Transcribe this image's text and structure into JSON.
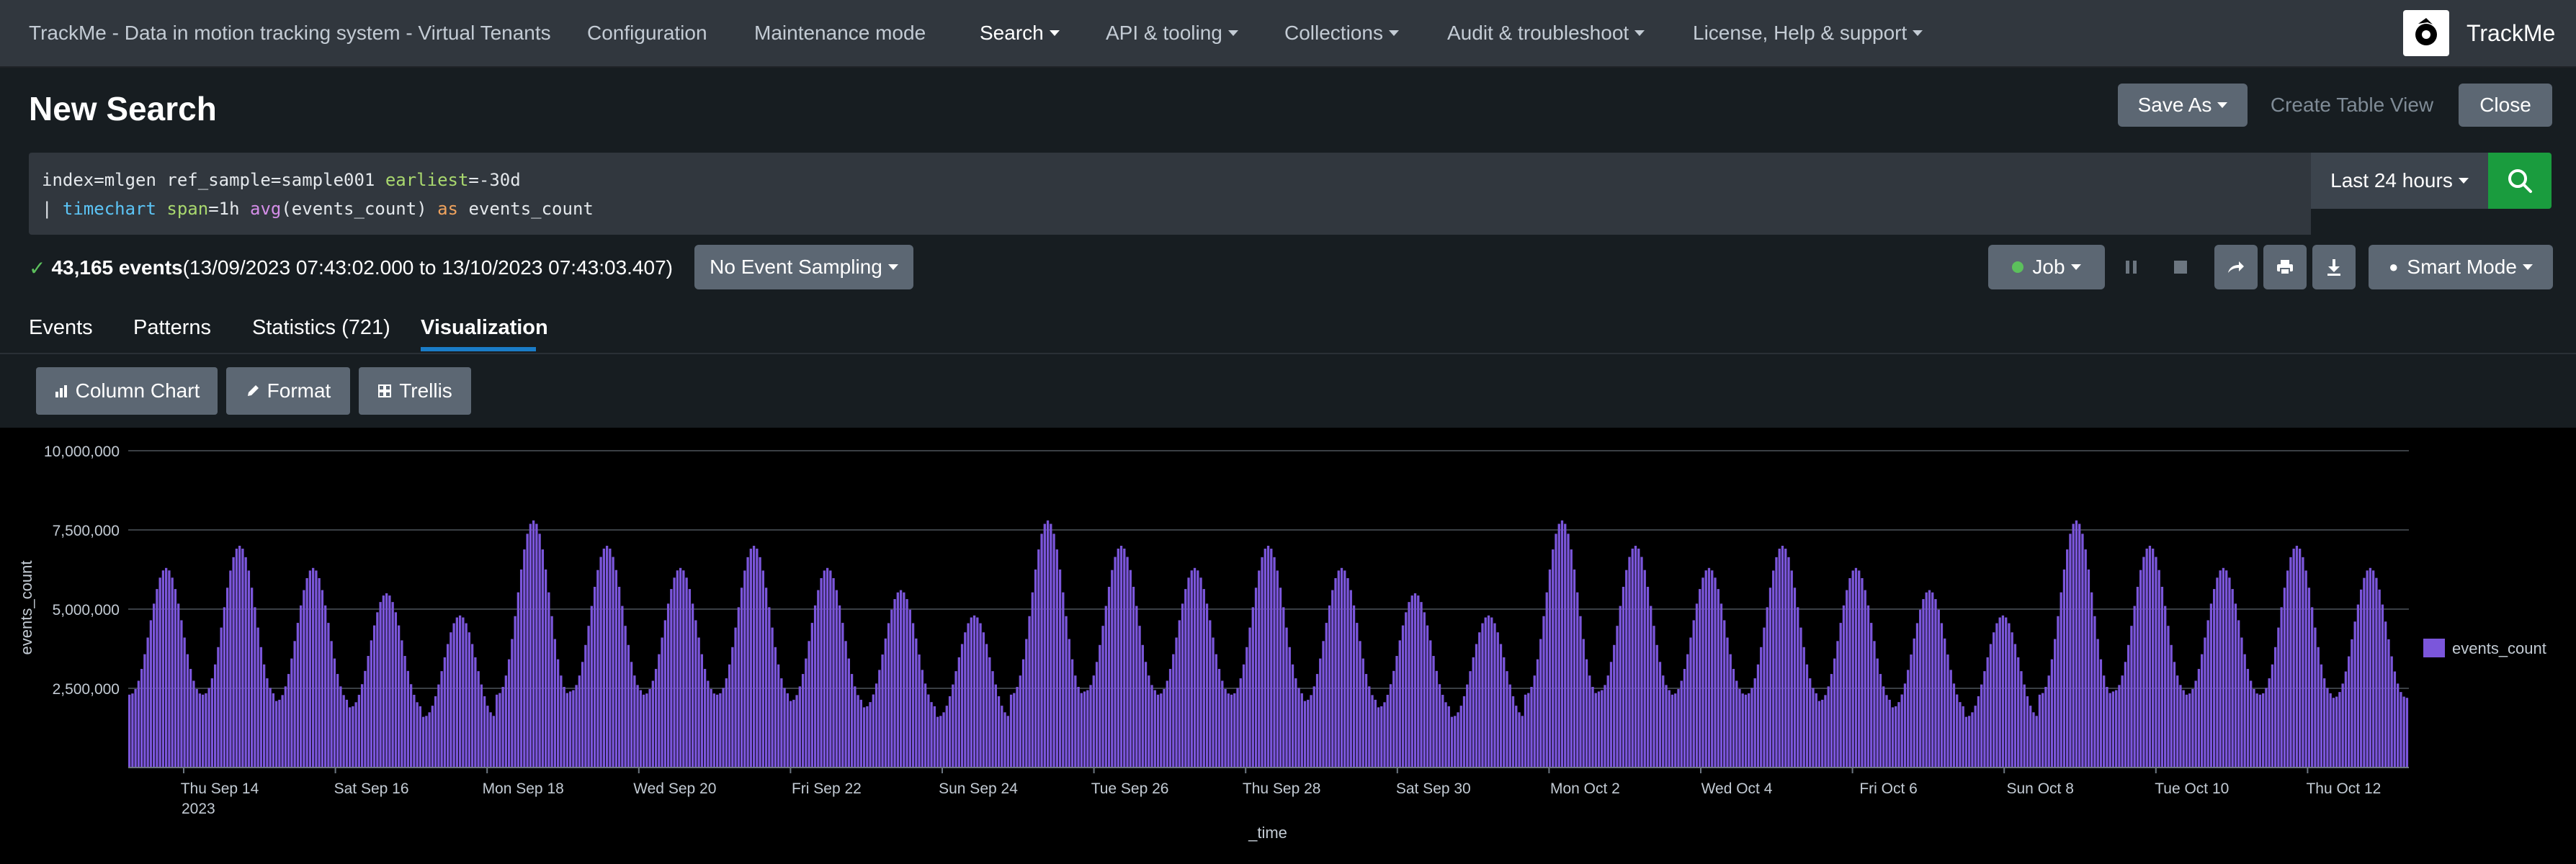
{
  "nav": {
    "app_title": "TrackMe - Data in motion tracking system - Virtual Tenants",
    "items": [
      "Configuration",
      "Maintenance mode",
      "Search",
      "API & tooling",
      "Collections",
      "Audit & troubleshoot",
      "License, Help & support"
    ],
    "brand": "TrackMe"
  },
  "page": {
    "title": "New Search",
    "save_as": "Save As",
    "create_table_view": "Create Table View",
    "close": "Close"
  },
  "search": {
    "line1_plain": "index=mlgen ref_sample=sample001 ",
    "line1_kw": "earliest",
    "line1_rest": "=-30d",
    "line2_pipe": "| ",
    "line2_cmd": "timechart",
    "line2_sp": " ",
    "line2_arg": "span",
    "line2_argval": "=1h ",
    "line2_fn": "avg",
    "line2_fnargs": "(events_count) ",
    "line2_as": "as",
    "line2_field": " events_count",
    "time_range": "Last 24 hours"
  },
  "status": {
    "count": "43,165 events",
    "range": " (13/09/2023 07:43:02.000 to 13/10/2023 07:43:03.407)",
    "sampling": "No Event Sampling",
    "job": "Job",
    "mode": "Smart Mode"
  },
  "tabs": [
    "Events",
    "Patterns",
    "Statistics (721)",
    "Visualization"
  ],
  "viz_toolbar": {
    "chart_type": "Column Chart",
    "format": "Format",
    "trellis": "Trellis"
  },
  "colors": {
    "accent_green": "#1a9c3e",
    "bar_purple": "#7b56db",
    "tab_underline": "#1a7cc7"
  },
  "chart_data": {
    "type": "bar",
    "xlabel": "_time",
    "ylabel": "events_count",
    "ylim": [
      0,
      10000000
    ],
    "yticks": [
      "2,500,000",
      "5,000,000",
      "7,500,000",
      "10,000,000"
    ],
    "ytick_values": [
      2500000,
      5000000,
      7500000,
      10000000
    ],
    "xticks": [
      "Thu Sep 14",
      "Sat Sep 16",
      "Mon Sep 18",
      "Wed Sep 20",
      "Fri Sep 22",
      "Sun Sep 24",
      "Tue Sep 26",
      "Thu Sep 28",
      "Sat Sep 30",
      "Mon Oct 2",
      "Wed Oct 4",
      "Fri Oct 6",
      "Sun Oct 8",
      "Tue Oct 10",
      "Thu Oct 12"
    ],
    "xtick_year": "2023",
    "x_start": "2023-09-13T07:00",
    "interval": "1h",
    "legend_position": "right",
    "grid": true,
    "series": [
      {
        "name": "events_count",
        "daily_peaks": [
          6300000,
          7000000,
          6300000,
          5500000,
          4800000,
          7800000,
          7000000,
          6300000,
          7000000,
          6300000,
          5600000,
          4800000,
          7800000,
          7000000,
          6300000,
          7000000,
          6300000,
          5500000,
          4800000,
          7800000,
          7000000,
          6300000,
          7000000,
          6300000,
          5600000,
          4800000,
          7800000,
          7000000,
          6300000,
          7000000,
          6300000
        ],
        "daily_troughs": [
          2300000,
          2300000,
          2100000,
          1900000,
          1600000,
          2300000,
          2400000,
          2300000,
          2300000,
          2100000,
          1900000,
          1600000,
          2300000,
          2400000,
          2300000,
          2300000,
          2100000,
          1900000,
          1600000,
          2300000,
          2400000,
          2300000,
          2300000,
          2100000,
          1900000,
          1600000,
          2300000,
          2400000,
          2300000,
          2300000,
          2200000
        ]
      }
    ]
  }
}
